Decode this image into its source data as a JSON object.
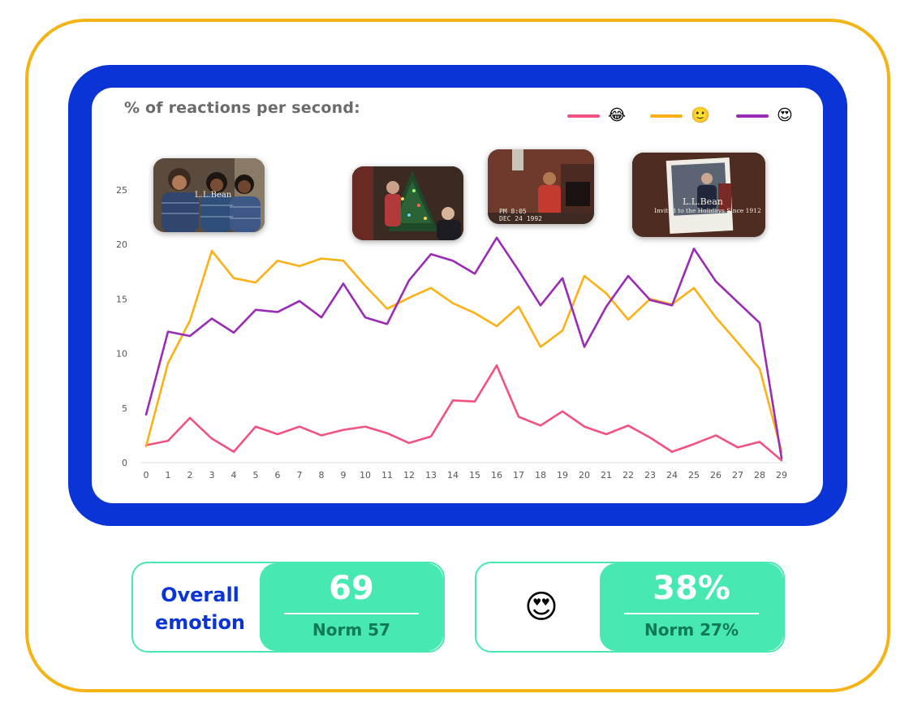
{
  "chart_data": {
    "type": "line",
    "title": "% of reactions per second:",
    "x": [
      0,
      1,
      2,
      3,
      4,
      5,
      6,
      7,
      8,
      9,
      10,
      11,
      12,
      13,
      14,
      15,
      16,
      17,
      18,
      19,
      20,
      21,
      22,
      23,
      24,
      25,
      26,
      27,
      28,
      29
    ],
    "xlim": [
      0,
      29
    ],
    "ylim": [
      0,
      27
    ],
    "yticks": [
      0,
      5,
      10,
      15,
      20,
      25
    ],
    "grid": false,
    "legend_position": "top-right",
    "series": [
      {
        "legend": "😂",
        "color": "#f2527f",
        "values": [
          1.6,
          2.0,
          4.1,
          2.2,
          1.0,
          3.3,
          2.6,
          3.3,
          2.5,
          3.0,
          3.3,
          2.7,
          1.8,
          2.4,
          5.7,
          5.6,
          8.9,
          4.2,
          3.4,
          4.7,
          3.3,
          2.6,
          3.4,
          2.3,
          1.0,
          1.7,
          2.5,
          1.4,
          1.9,
          0.2
        ]
      },
      {
        "legend": "🙂",
        "color": "#fbb116",
        "values": [
          1.5,
          9.1,
          13.0,
          19.4,
          16.9,
          16.5,
          18.5,
          18.0,
          18.7,
          18.5,
          16.2,
          14.1,
          15.1,
          16.0,
          14.6,
          13.7,
          12.5,
          14.3,
          10.6,
          12.1,
          17.1,
          15.5,
          13.1,
          15.0,
          14.5,
          16.0,
          13.3,
          11.0,
          8.6,
          1.0
        ]
      },
      {
        "legend": "😍",
        "color": "#9a2bb5",
        "values": [
          4.4,
          12.0,
          11.6,
          13.2,
          11.9,
          14.0,
          13.8,
          14.8,
          13.3,
          16.4,
          13.3,
          12.7,
          16.7,
          19.1,
          18.5,
          17.3,
          20.6,
          17.6,
          14.4,
          16.9,
          10.6,
          14.3,
          17.1,
          14.9,
          14.4,
          19.6,
          16.6,
          14.7,
          12.8,
          0.4
        ]
      }
    ],
    "thumbnails": [
      {
        "name": "family-photo",
        "caption": "L.L.Bean"
      },
      {
        "name": "christmas-tree",
        "caption": ""
      },
      {
        "name": "vhs-fireplace",
        "caption": "PM 8:05\nDEC 24 1992"
      },
      {
        "name": "polaroid",
        "caption": "L.L.Bean",
        "subcaption": "Invited to the Holidays Since 1912"
      }
    ]
  },
  "scores": {
    "overall": {
      "label_line1": "Overall",
      "label_line2": "emotion",
      "value": "69",
      "norm": "Norm 57"
    },
    "love": {
      "emoji": "😍",
      "value": "38%",
      "norm": "Norm 27%"
    }
  }
}
